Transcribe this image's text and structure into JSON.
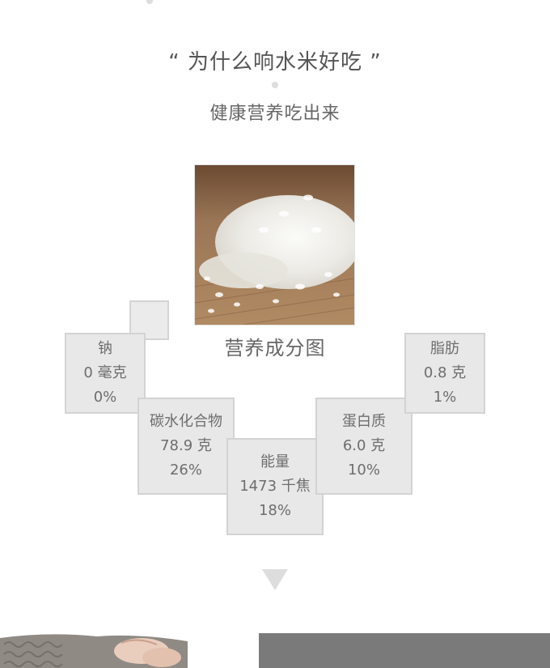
{
  "header": {
    "headline": "“ 为什么响水米好吃 ”",
    "subheadline": "健康营养吃出来"
  },
  "nutrition": {
    "title": "营养成分图",
    "items": [
      {
        "name": "钠",
        "amount": "0 毫克",
        "percent": "0%"
      },
      {
        "name": "碳水化合物",
        "amount": "78.9 克",
        "percent": "26%"
      },
      {
        "name": "能量",
        "amount": "1473 千焦",
        "percent": "18%"
      },
      {
        "name": "蛋白质",
        "amount": "6.0 克",
        "percent": "10%"
      },
      {
        "name": "脂肪",
        "amount": "0.8 克",
        "percent": "1%"
      }
    ]
  },
  "colors": {
    "tile_fill": "#e8e8e8",
    "tile_border": "#d3d3d3",
    "text": "#666666",
    "arrow": "#dddddd",
    "bottom_panel": "#7a7a7a"
  },
  "icons": {
    "scroll_indicator": "down-triangle-icon"
  }
}
